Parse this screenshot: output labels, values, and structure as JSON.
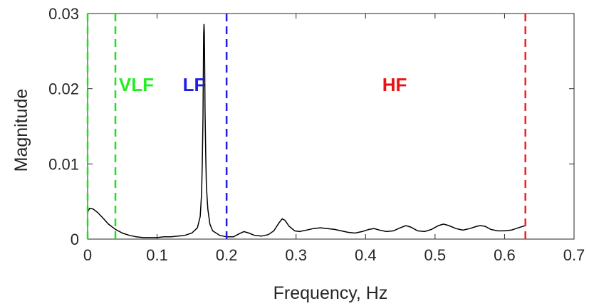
{
  "chart_data": {
    "type": "line",
    "title": "",
    "xlabel": "Frequency, Hz",
    "ylabel": "Magnitude",
    "xlim": [
      0,
      0.7
    ],
    "ylim": [
      0,
      0.03
    ],
    "grid": false,
    "x_ticks": [
      {
        "value": 0,
        "label": "0"
      },
      {
        "value": 0.1,
        "label": "0.1"
      },
      {
        "value": 0.2,
        "label": "0.2"
      },
      {
        "value": 0.3,
        "label": "0.3"
      },
      {
        "value": 0.4,
        "label": "0.4"
      },
      {
        "value": 0.5,
        "label": "0.5"
      },
      {
        "value": 0.6,
        "label": "0.6"
      },
      {
        "value": 0.7,
        "label": "0.7"
      }
    ],
    "y_ticks": [
      {
        "value": 0,
        "label": "0"
      },
      {
        "value": 0.01,
        "label": "0.01"
      },
      {
        "value": 0.02,
        "label": "0.02"
      },
      {
        "value": 0.03,
        "label": "0.03"
      }
    ],
    "series": [
      {
        "color": "#000000",
        "points": [
          [
            0.0,
            0.0036
          ],
          [
            0.003,
            0.0041
          ],
          [
            0.008,
            0.004
          ],
          [
            0.015,
            0.0035
          ],
          [
            0.022,
            0.0028
          ],
          [
            0.03,
            0.002
          ],
          [
            0.04,
            0.0013
          ],
          [
            0.05,
            0.0008
          ],
          [
            0.06,
            0.0005
          ],
          [
            0.07,
            0.0003
          ],
          [
            0.08,
            0.0002
          ],
          [
            0.09,
            0.0002
          ],
          [
            0.1,
            0.0002
          ],
          [
            0.11,
            0.0003
          ],
          [
            0.12,
            0.0003
          ],
          [
            0.13,
            0.0004
          ],
          [
            0.14,
            0.0005
          ],
          [
            0.15,
            0.0008
          ],
          [
            0.158,
            0.0015
          ],
          [
            0.162,
            0.003
          ],
          [
            0.164,
            0.006
          ],
          [
            0.165,
            0.01
          ],
          [
            0.166,
            0.016
          ],
          [
            0.1665,
            0.022
          ],
          [
            0.167,
            0.027
          ],
          [
            0.1675,
            0.0286
          ],
          [
            0.168,
            0.0275
          ],
          [
            0.1685,
            0.023
          ],
          [
            0.169,
            0.017
          ],
          [
            0.17,
            0.011
          ],
          [
            0.171,
            0.007
          ],
          [
            0.173,
            0.004
          ],
          [
            0.176,
            0.002
          ],
          [
            0.18,
            0.0011
          ],
          [
            0.19,
            0.0005
          ],
          [
            0.2,
            0.0003
          ],
          [
            0.21,
            0.0003
          ],
          [
            0.218,
            0.0007
          ],
          [
            0.225,
            0.001
          ],
          [
            0.232,
            0.0008
          ],
          [
            0.24,
            0.0005
          ],
          [
            0.25,
            0.0004
          ],
          [
            0.26,
            0.0006
          ],
          [
            0.268,
            0.0011
          ],
          [
            0.275,
            0.0021
          ],
          [
            0.28,
            0.0027
          ],
          [
            0.284,
            0.0025
          ],
          [
            0.29,
            0.0017
          ],
          [
            0.298,
            0.0011
          ],
          [
            0.305,
            0.001
          ],
          [
            0.315,
            0.0012
          ],
          [
            0.325,
            0.0014
          ],
          [
            0.335,
            0.0015
          ],
          [
            0.345,
            0.0014
          ],
          [
            0.355,
            0.0013
          ],
          [
            0.365,
            0.0011
          ],
          [
            0.375,
            0.0009
          ],
          [
            0.385,
            0.0008
          ],
          [
            0.395,
            0.001
          ],
          [
            0.405,
            0.0013
          ],
          [
            0.412,
            0.0014
          ],
          [
            0.42,
            0.0012
          ],
          [
            0.43,
            0.001
          ],
          [
            0.44,
            0.0011
          ],
          [
            0.45,
            0.0015
          ],
          [
            0.458,
            0.0018
          ],
          [
            0.465,
            0.0016
          ],
          [
            0.475,
            0.0011
          ],
          [
            0.485,
            0.001
          ],
          [
            0.495,
            0.0013
          ],
          [
            0.505,
            0.0018
          ],
          [
            0.512,
            0.002
          ],
          [
            0.52,
            0.0018
          ],
          [
            0.53,
            0.0014
          ],
          [
            0.54,
            0.0012
          ],
          [
            0.55,
            0.0014
          ],
          [
            0.56,
            0.0017
          ],
          [
            0.565,
            0.0018
          ],
          [
            0.572,
            0.0017
          ],
          [
            0.58,
            0.0013
          ],
          [
            0.59,
            0.0011
          ],
          [
            0.6,
            0.0011
          ],
          [
            0.61,
            0.0012
          ],
          [
            0.62,
            0.0015
          ],
          [
            0.63,
            0.0018
          ]
        ]
      }
    ],
    "boundaries": [
      {
        "x": 0.0,
        "color": "#22dd22"
      },
      {
        "x": 0.04,
        "color": "#22dd22"
      },
      {
        "x": 0.2,
        "color": "#1f1fdd"
      },
      {
        "x": 0.63,
        "color": "#ee2222"
      }
    ],
    "annotations": [
      {
        "text": "VLF",
        "x": 0.045,
        "y": 0.0197,
        "color": "#22ee22"
      },
      {
        "text": "LF",
        "x": 0.137,
        "y": 0.0197,
        "color": "#1f1fdd"
      },
      {
        "text": "HF",
        "x": 0.424,
        "y": 0.0197,
        "color": "#ee1111"
      }
    ]
  }
}
